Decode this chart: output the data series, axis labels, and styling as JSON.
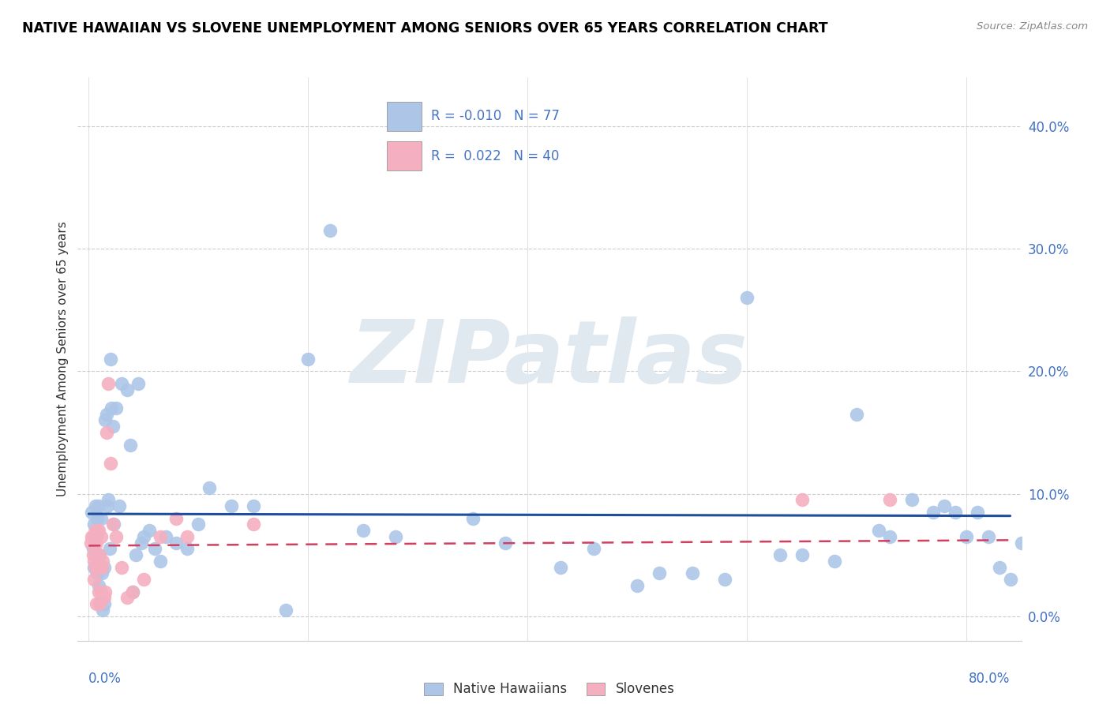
{
  "title": "NATIVE HAWAIIAN VS SLOVENE UNEMPLOYMENT AMONG SENIORS OVER 65 YEARS CORRELATION CHART",
  "source": "Source: ZipAtlas.com",
  "ylabel": "Unemployment Among Seniors over 65 years",
  "ytick_labels": [
    "0.0%",
    "10.0%",
    "20.0%",
    "30.0%",
    "40.0%"
  ],
  "ytick_values": [
    0.0,
    0.1,
    0.2,
    0.3,
    0.4
  ],
  "xtick_labels": [
    "0.0%",
    "80.0%"
  ],
  "xtick_values": [
    0.0,
    0.8
  ],
  "xlim": [
    -0.01,
    0.85
  ],
  "ylim": [
    -0.02,
    0.44
  ],
  "legend_label1": "Native Hawaiians",
  "legend_label2": "Slovenes",
  "R1": "-0.010",
  "N1": "77",
  "R2": "0.022",
  "N2": "40",
  "color_blue": "#adc6e8",
  "color_pink": "#f4afc0",
  "color_text_blue": "#4472c4",
  "color_line_blue": "#1f4e9c",
  "color_line_pink": "#d04060",
  "color_grid": "#cccccc",
  "watermark_color": "#e0e8f0",
  "blue_x": [
    0.003,
    0.004,
    0.005,
    0.005,
    0.006,
    0.006,
    0.007,
    0.008,
    0.008,
    0.009,
    0.009,
    0.01,
    0.01,
    0.011,
    0.012,
    0.013,
    0.014,
    0.014,
    0.015,
    0.016,
    0.017,
    0.018,
    0.019,
    0.02,
    0.021,
    0.022,
    0.023,
    0.025,
    0.028,
    0.03,
    0.035,
    0.038,
    0.04,
    0.043,
    0.045,
    0.048,
    0.05,
    0.055,
    0.06,
    0.065,
    0.07,
    0.08,
    0.09,
    0.1,
    0.11,
    0.13,
    0.15,
    0.18,
    0.2,
    0.22,
    0.25,
    0.28,
    0.35,
    0.38,
    0.43,
    0.46,
    0.5,
    0.52,
    0.55,
    0.58,
    0.6,
    0.63,
    0.65,
    0.68,
    0.7,
    0.72,
    0.73,
    0.75,
    0.77,
    0.78,
    0.79,
    0.8,
    0.81,
    0.82,
    0.83,
    0.84,
    0.85
  ],
  "blue_y": [
    0.085,
    0.055,
    0.04,
    0.075,
    0.05,
    0.09,
    0.065,
    0.035,
    0.08,
    0.025,
    0.09,
    0.05,
    0.01,
    0.08,
    0.035,
    0.005,
    0.04,
    0.01,
    0.16,
    0.165,
    0.09,
    0.095,
    0.055,
    0.21,
    0.17,
    0.155,
    0.075,
    0.17,
    0.09,
    0.19,
    0.185,
    0.14,
    0.02,
    0.05,
    0.19,
    0.06,
    0.065,
    0.07,
    0.055,
    0.045,
    0.065,
    0.06,
    0.055,
    0.075,
    0.105,
    0.09,
    0.09,
    0.005,
    0.21,
    0.315,
    0.07,
    0.065,
    0.08,
    0.06,
    0.04,
    0.055,
    0.025,
    0.035,
    0.035,
    0.03,
    0.26,
    0.05,
    0.05,
    0.045,
    0.165,
    0.07,
    0.065,
    0.095,
    0.085,
    0.09,
    0.085,
    0.065,
    0.085,
    0.065,
    0.04,
    0.03,
    0.06
  ],
  "pink_x": [
    0.002,
    0.003,
    0.004,
    0.004,
    0.005,
    0.005,
    0.005,
    0.006,
    0.006,
    0.006,
    0.007,
    0.007,
    0.008,
    0.008,
    0.009,
    0.009,
    0.009,
    0.01,
    0.01,
    0.011,
    0.011,
    0.012,
    0.013,
    0.014,
    0.015,
    0.016,
    0.018,
    0.02,
    0.022,
    0.025,
    0.03,
    0.035,
    0.04,
    0.05,
    0.065,
    0.08,
    0.09,
    0.15,
    0.65,
    0.73
  ],
  "pink_y": [
    0.06,
    0.065,
    0.05,
    0.065,
    0.03,
    0.045,
    0.065,
    0.04,
    0.065,
    0.07,
    0.01,
    0.06,
    0.04,
    0.07,
    0.02,
    0.04,
    0.07,
    0.01,
    0.05,
    0.02,
    0.065,
    0.04,
    0.045,
    0.015,
    0.02,
    0.15,
    0.19,
    0.125,
    0.075,
    0.065,
    0.04,
    0.015,
    0.02,
    0.03,
    0.065,
    0.08,
    0.065,
    0.075,
    0.095,
    0.095
  ]
}
